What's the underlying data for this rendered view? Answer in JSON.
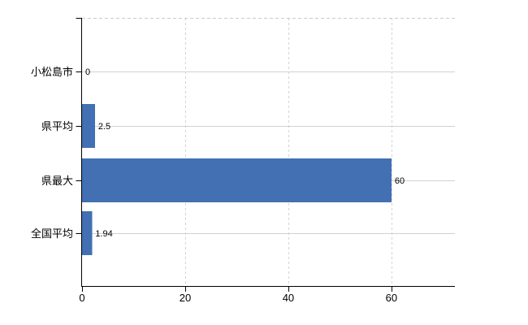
{
  "chart_data": {
    "type": "bar",
    "orientation": "horizontal",
    "title": "",
    "xlabel": "",
    "ylabel": "",
    "categories": [
      "小松島市",
      "県平均",
      "県最大",
      "全国平均"
    ],
    "values": [
      0,
      2.5,
      60,
      1.94
    ],
    "data_labels": [
      "0",
      "2.5",
      "60",
      "1.94"
    ],
    "x_ticks": [
      0,
      20,
      40,
      60
    ],
    "x_tick_labels": [
      "0",
      "20",
      "40",
      "60"
    ],
    "xlim": [
      0,
      72.3
    ],
    "grid": {
      "vertical_style": "dashed",
      "horizontal_style": "solid",
      "top_border_style": "dashed"
    },
    "legend_position": "none",
    "colors": {
      "bar": "#4270b2",
      "axis": "#000000",
      "vertical_grid": "#d4d4d4",
      "horizontal_grid": "#ccd4cc",
      "top_border": "#c9c9c9",
      "text": "#000000",
      "background": "#ffffff"
    }
  }
}
